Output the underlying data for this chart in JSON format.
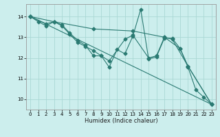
{
  "xlabel": "Humidex (Indice chaleur)",
  "bg_color": "#cceeed",
  "grid_color": "#aad8d5",
  "line_color": "#2a7a72",
  "xlim": [
    -0.5,
    23.5
  ],
  "ylim": [
    9.5,
    14.6
  ],
  "yticks": [
    10,
    11,
    12,
    13,
    14
  ],
  "xticks": [
    0,
    1,
    2,
    3,
    4,
    5,
    6,
    7,
    8,
    9,
    10,
    11,
    12,
    13,
    14,
    15,
    16,
    17,
    18,
    19,
    20,
    21,
    22,
    23
  ],
  "series1": [
    [
      0,
      14.0
    ],
    [
      1,
      13.75
    ],
    [
      2,
      13.55
    ],
    [
      3,
      13.75
    ],
    [
      4,
      13.6
    ],
    [
      5,
      13.2
    ],
    [
      6,
      12.85
    ],
    [
      7,
      12.6
    ],
    [
      8,
      12.1
    ],
    [
      9,
      12.1
    ],
    [
      10,
      11.55
    ],
    [
      11,
      12.4
    ],
    [
      12,
      12.2
    ],
    [
      13,
      13.05
    ],
    [
      14,
      14.35
    ],
    [
      15,
      11.95
    ],
    [
      16,
      12.05
    ],
    [
      17,
      12.95
    ],
    [
      18,
      12.95
    ],
    [
      19,
      12.45
    ],
    [
      20,
      11.55
    ],
    [
      21,
      10.45
    ],
    [
      22,
      10.1
    ],
    [
      23,
      9.75
    ]
  ],
  "series2": [
    [
      0,
      14.0
    ],
    [
      2,
      13.65
    ],
    [
      3,
      13.75
    ],
    [
      4,
      13.55
    ],
    [
      5,
      13.15
    ],
    [
      6,
      12.75
    ],
    [
      7,
      12.55
    ],
    [
      8,
      12.35
    ],
    [
      9,
      12.1
    ],
    [
      10,
      11.85
    ],
    [
      12,
      12.9
    ],
    [
      13,
      13.1
    ],
    [
      15,
      12.0
    ],
    [
      16,
      12.1
    ],
    [
      17,
      13.0
    ],
    [
      18,
      12.9
    ],
    [
      20,
      11.6
    ],
    [
      23,
      9.75
    ]
  ],
  "series3": [
    [
      0,
      14.0
    ],
    [
      3,
      13.75
    ],
    [
      8,
      13.4
    ],
    [
      13,
      13.3
    ],
    [
      17,
      13.0
    ],
    [
      19,
      12.45
    ],
    [
      20,
      11.6
    ],
    [
      23,
      9.75
    ]
  ],
  "series4": [
    [
      0,
      14.0
    ],
    [
      23,
      9.75
    ]
  ]
}
